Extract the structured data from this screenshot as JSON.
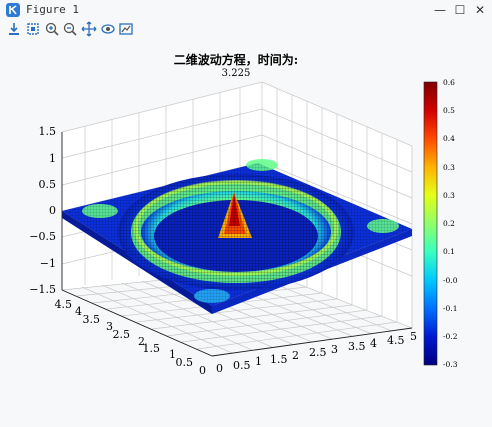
{
  "window": {
    "title": "Figure 1"
  },
  "toolbar": {
    "buttons": [
      "save-icon",
      "zoom-box-icon",
      "zoom-in-icon",
      "zoom-out-icon",
      "pan-icon",
      "rotate-icon",
      "restore-view-icon"
    ]
  },
  "plot": {
    "title": "二维波动方程，时间为:",
    "subtitle": "3.225",
    "z_ticks": [
      "1.5",
      "1",
      "0.5",
      "0",
      "−0.5",
      "−1",
      "−1.5"
    ],
    "x_ticks": [
      "0",
      "0.5",
      "1",
      "1.5",
      "2",
      "2.5",
      "3",
      "3.5",
      "4",
      "4.5",
      "5"
    ],
    "y_ticks": [
      "0",
      "0.5",
      "1",
      "1.5",
      "2",
      "2.5",
      "3",
      "3.5",
      "4",
      "4.5"
    ]
  },
  "colorbar": {
    "ticks": [
      "0.6",
      "0.5",
      "0.4",
      "0.3",
      "0.3",
      "0.2",
      "0.1",
      "-0.0",
      "-0.1",
      "-0.2",
      "-0.3"
    ],
    "colors": [
      "#7f0000",
      "#d10000",
      "#ff4a00",
      "#ffb300",
      "#e3ff1a",
      "#8fff6b",
      "#3affc0",
      "#00c8ff",
      "#0070ff",
      "#0018d0",
      "#000080"
    ]
  }
}
